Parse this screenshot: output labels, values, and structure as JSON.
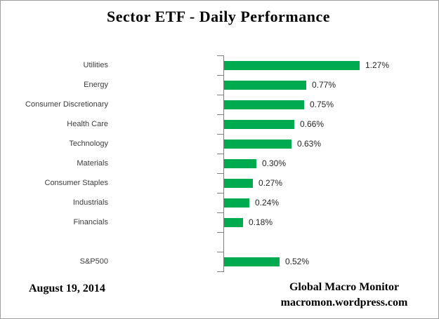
{
  "chart_data": {
    "type": "bar",
    "orientation": "horizontal",
    "title": "Sector ETF - Daily Performance",
    "categories": [
      "Utilities",
      "Energy",
      "Consumer Discretionary",
      "Health Care",
      "Technology",
      "Materials",
      "Consumer Staples",
      "Industrials",
      "Financials",
      "",
      "S&P500"
    ],
    "values": [
      1.27,
      0.77,
      0.75,
      0.66,
      0.63,
      0.3,
      0.27,
      0.24,
      0.18,
      null,
      0.52
    ],
    "value_labels": [
      "1.27%",
      "0.77%",
      "0.75%",
      "0.66%",
      "0.63%",
      "0.30%",
      "0.27%",
      "0.24%",
      "0.18%",
      "",
      "0.52%"
    ],
    "xlabel": "",
    "ylabel": "",
    "xlim": [
      0,
      1.4
    ],
    "grid": false,
    "legend": false,
    "bar_color": "#00AB50",
    "axis_color": "#808080"
  },
  "footer": {
    "date": "August 19, 2014",
    "source_line1": "Global Macro Monitor",
    "source_line2": "macromon.wordpress.com"
  }
}
